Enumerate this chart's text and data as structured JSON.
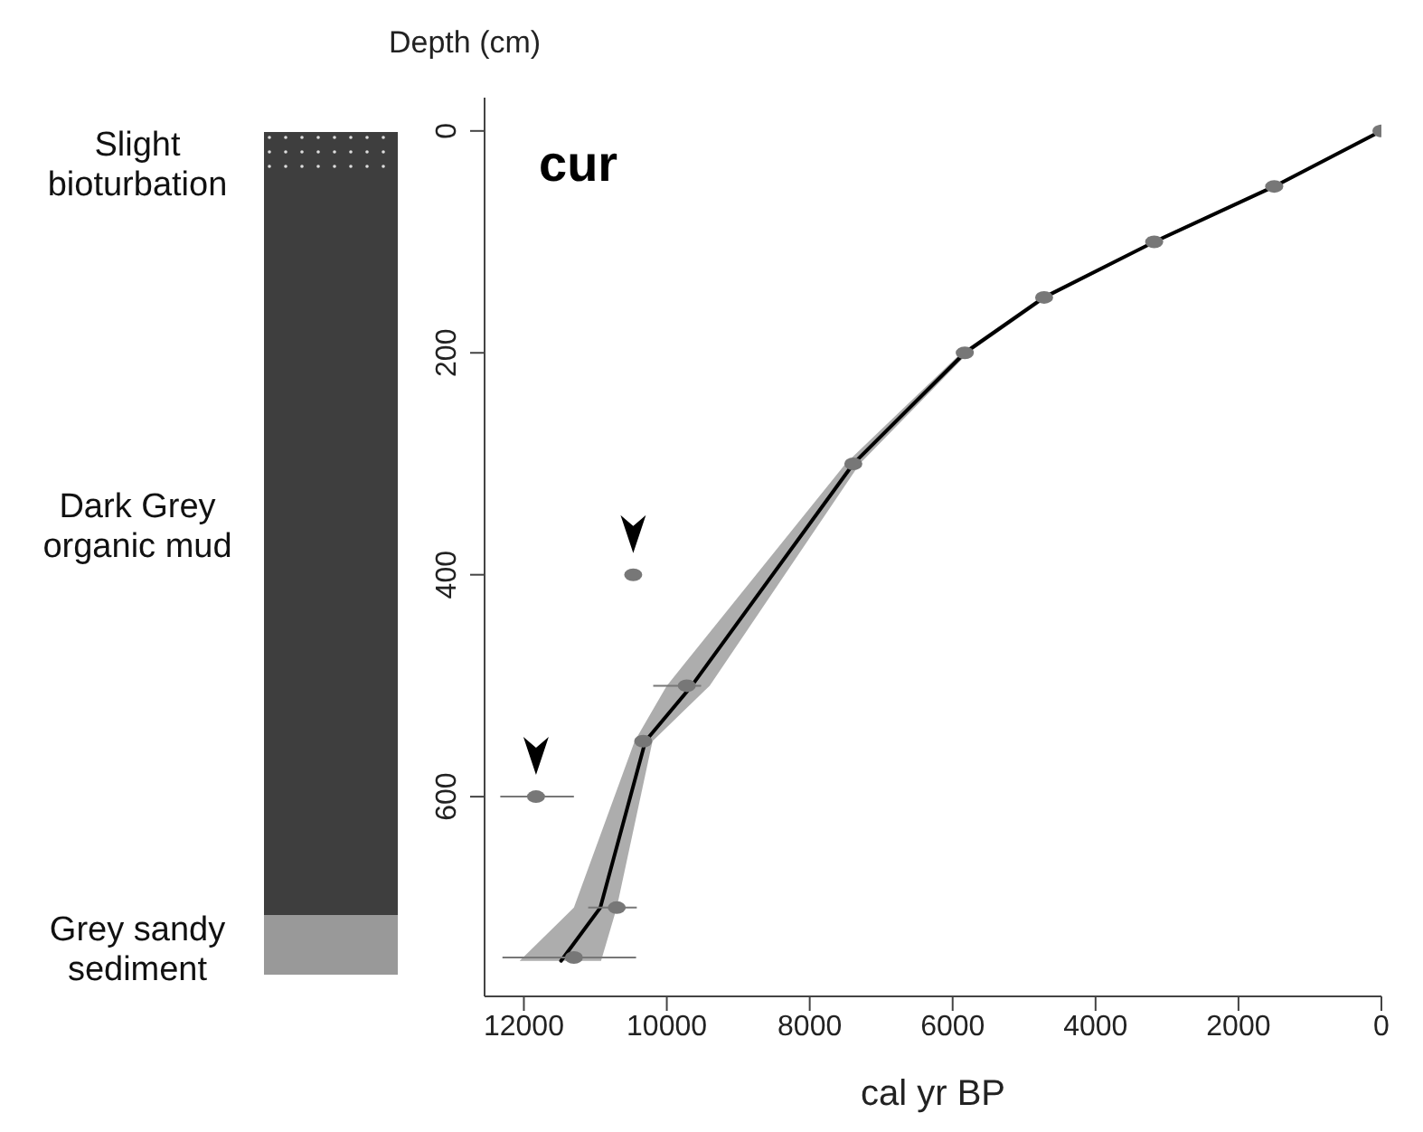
{
  "chart_data": {
    "type": "line",
    "orientation": "horizontal",
    "title": "cur",
    "xlabel": "cal yr BP",
    "ylabel": "Depth (cm)",
    "xlim": [
      12550,
      0
    ],
    "xticks": [
      12000,
      10000,
      8000,
      6000,
      4000,
      2000,
      0
    ],
    "ylim": [
      780,
      -30
    ],
    "yticks": [
      0,
      200,
      400,
      600
    ],
    "grid": false,
    "annotations": [
      "Slight bioturbation",
      "Dark Grey organic mud",
      "Grey sandy sediment"
    ],
    "series": [
      {
        "color": "#000000",
        "marker": "none",
        "x": [
          0,
          50,
          100,
          150,
          200,
          300,
          500,
          550,
          700,
          748
        ],
        "values": [
          0,
          1500,
          3180,
          4720,
          5830,
          7390,
          9650,
          10300,
          10930,
          11480
        ],
        "lower": [
          0,
          1450,
          3130,
          4670,
          5780,
          7300,
          9400,
          10200,
          10700,
          10920
        ],
        "upper": [
          0,
          1550,
          3230,
          4770,
          5880,
          7500,
          10000,
          10450,
          11300,
          12060
        ]
      },
      {
        "type": "scatter",
        "color": "#777777",
        "marker": "circle",
        "x": [
          0,
          50,
          100,
          150,
          200,
          300,
          500,
          550,
          700,
          745
        ],
        "values": [
          0,
          1500,
          3180,
          4720,
          5830,
          7390,
          9720,
          10330,
          10700,
          11300
        ],
        "errors": [
          null,
          null,
          null,
          null,
          null,
          null,
          [
            9520,
            10190
          ],
          null,
          [
            10420,
            11100
          ],
          [
            10430,
            12300
          ]
        ]
      },
      {
        "type": "scatter",
        "color": "#777777",
        "marker": "circle",
        "x": [
          400,
          600
        ],
        "values": [
          10470,
          11830
        ],
        "errors": [
          null,
          [
            11300,
            12330
          ]
        ]
      }
    ]
  }
}
